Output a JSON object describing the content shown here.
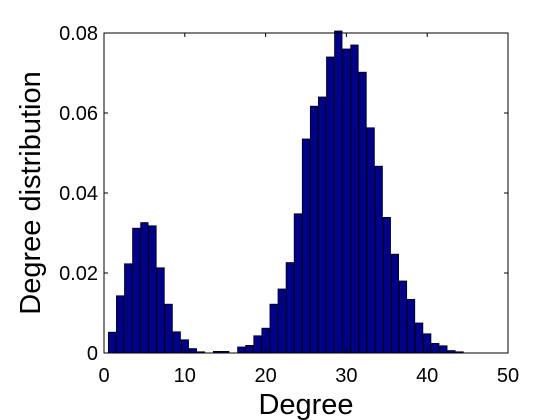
{
  "chart_data": {
    "type": "bar",
    "title": "",
    "xlabel": "Degree",
    "ylabel": "Degree distribution",
    "xlim": [
      0,
      50
    ],
    "ylim": [
      0,
      0.08
    ],
    "x_ticks": [
      "0",
      "10",
      "20",
      "30",
      "40",
      "50"
    ],
    "y_ticks": [
      "0",
      "0.02",
      "0.04",
      "0.06",
      "0.08"
    ],
    "grid": false,
    "legend": "none",
    "bar_color": "#00008f",
    "edge_color": "#000000",
    "x": [
      1,
      2,
      3,
      4,
      5,
      6,
      7,
      8,
      9,
      10,
      11,
      12,
      13,
      14,
      15,
      16,
      17,
      18,
      19,
      20,
      21,
      22,
      23,
      24,
      25,
      26,
      27,
      28,
      29,
      30,
      31,
      32,
      33,
      34,
      35,
      36,
      37,
      38,
      39,
      40,
      41,
      42,
      43,
      44,
      45,
      46,
      47,
      48,
      49
    ],
    "values": [
      0.0052,
      0.0143,
      0.0223,
      0.0312,
      0.0326,
      0.0318,
      0.0213,
      0.0122,
      0.0053,
      0.0033,
      0.0011,
      0.0003,
      0.0,
      0.0004,
      0.0004,
      0.0,
      0.0015,
      0.0019,
      0.0043,
      0.0062,
      0.0122,
      0.016,
      0.0226,
      0.0348,
      0.0535,
      0.0617,
      0.064,
      0.074,
      0.0805,
      0.076,
      0.077,
      0.0702,
      0.0563,
      0.0467,
      0.0339,
      0.0247,
      0.018,
      0.0134,
      0.0075,
      0.0048,
      0.0024,
      0.0018,
      0.0006,
      0.0003,
      0.0,
      0.0,
      0.0,
      0.0,
      0.0
    ]
  }
}
